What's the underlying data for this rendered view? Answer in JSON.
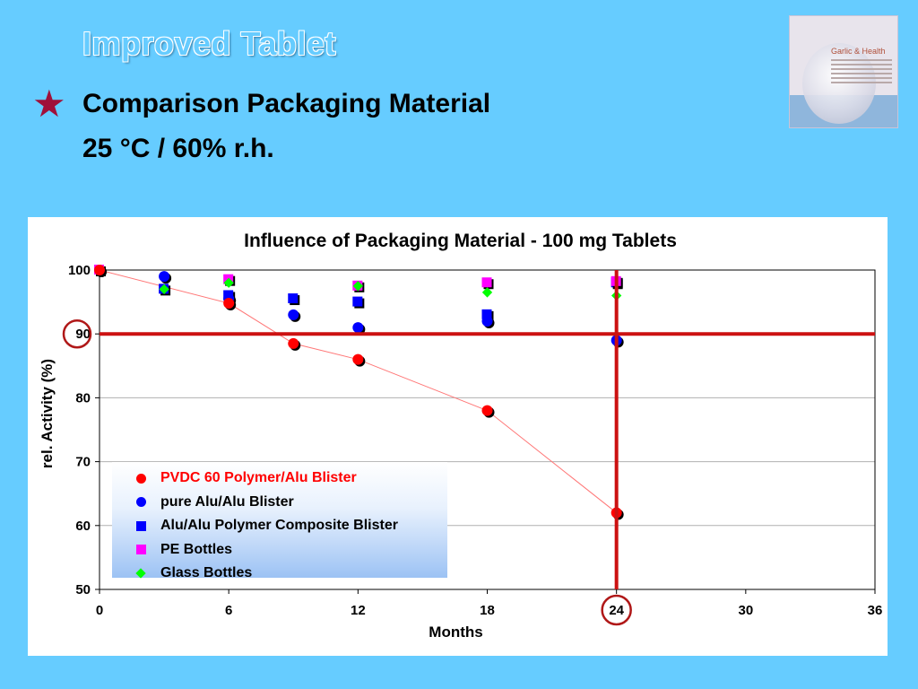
{
  "slide": {
    "title": "Improved Tablet",
    "heading": "Comparison Packaging Material",
    "subheading": "25 °C / 60% r.h.",
    "bullet_icon": "star-icon",
    "logo": {
      "title": "Garlic & Health",
      "icon": "garlic-bulb-icon"
    }
  },
  "colors": {
    "background": "#66ccff",
    "bullet_star": "#a0103a",
    "highlight_lines": "#cc1111"
  },
  "chart_data": {
    "type": "scatter",
    "title": "Influence of Packaging Material - 100 mg Tablets",
    "xlabel": "Months",
    "ylabel": "rel. Activity (%)",
    "xlim": [
      0,
      36
    ],
    "ylim": [
      50,
      100
    ],
    "xticks": [
      0,
      6,
      12,
      18,
      24,
      30,
      36
    ],
    "yticks": [
      50,
      60,
      70,
      80,
      90,
      100
    ],
    "grid": "horizontal",
    "legend_position": "bottom-left",
    "reference_lines": {
      "horizontal_y": 90,
      "vertical_x": 24
    },
    "highlighted_tick_labels": {
      "y": 90,
      "x": 24
    },
    "series": [
      {
        "name": "PVDC 60 Polymer/Alu Blister",
        "marker": "circle",
        "color": "#ff0000",
        "connected": true,
        "label_color": "#ff0000",
        "points": [
          [
            0,
            100
          ],
          [
            6,
            94.8
          ],
          [
            9,
            88.5
          ],
          [
            12,
            86
          ],
          [
            18,
            78
          ],
          [
            24,
            62
          ]
        ]
      },
      {
        "name": "pure Alu/Alu Blister",
        "marker": "circle",
        "color": "#0000ff",
        "connected": false,
        "label_color": "#000000",
        "points": [
          [
            0,
            100
          ],
          [
            3,
            99
          ],
          [
            6,
            95.5
          ],
          [
            9,
            93
          ],
          [
            12,
            91
          ],
          [
            18,
            92
          ],
          [
            24,
            89
          ]
        ]
      },
      {
        "name": "Alu/Alu Polymer Composite Blister",
        "marker": "square",
        "color": "#0000ff",
        "connected": false,
        "label_color": "#000000",
        "points": [
          [
            0,
            100
          ],
          [
            3,
            97
          ],
          [
            6,
            96
          ],
          [
            9,
            95.5
          ],
          [
            12,
            95
          ],
          [
            18,
            93
          ],
          [
            24,
            98
          ]
        ]
      },
      {
        "name": "PE Bottles",
        "marker": "square",
        "color": "#ff00ff",
        "connected": false,
        "label_color": "#000000",
        "points": [
          [
            0,
            100
          ],
          [
            6,
            98.5
          ],
          [
            12,
            97.5
          ],
          [
            18,
            98
          ],
          [
            24,
            98.2
          ]
        ]
      },
      {
        "name": "Glass Bottles",
        "marker": "diamond",
        "color": "#00ff00",
        "connected": false,
        "label_color": "#000000",
        "points": [
          [
            0,
            100
          ],
          [
            3,
            97
          ],
          [
            6,
            98
          ],
          [
            12,
            97.5
          ],
          [
            18,
            96.5
          ],
          [
            24,
            96
          ]
        ]
      }
    ]
  }
}
